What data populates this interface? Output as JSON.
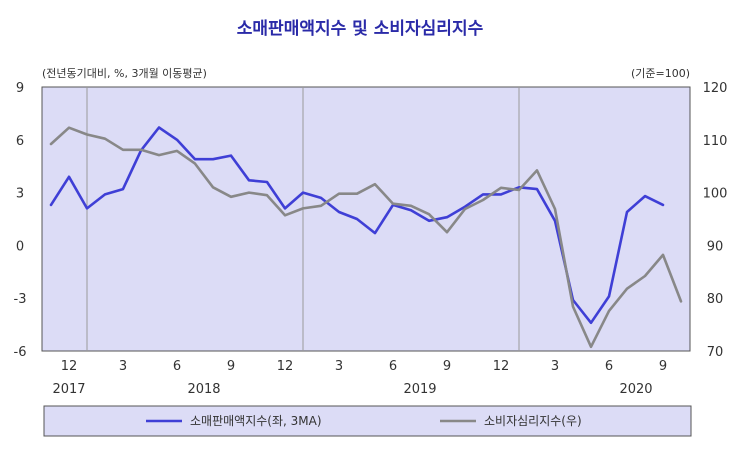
{
  "chart_data": {
    "type": "line",
    "title": "소매판매액지수 및 소비자심리지수",
    "left_note": "(전년동기대비,  %, 3개월 이동평균)",
    "right_note": "(기준=100)",
    "x_tick_labels": [
      "12",
      "3",
      "6",
      "9",
      "12",
      "3",
      "6",
      "9",
      "12",
      "3",
      "6",
      "9"
    ],
    "year_labels": [
      "2017",
      "2018",
      "2019",
      "2020"
    ],
    "y_left": {
      "ticks": [
        9,
        6,
        3,
        0,
        -3,
        -6
      ],
      "range": [
        -6,
        9
      ]
    },
    "y_right": {
      "ticks": [
        120,
        110,
        100,
        90,
        80,
        70
      ],
      "range": [
        70,
        120
      ]
    },
    "x": [
      "2017-11",
      "2017-12",
      "2018-01",
      "2018-02",
      "2018-03",
      "2018-04",
      "2018-05",
      "2018-06",
      "2018-07",
      "2018-08",
      "2018-09",
      "2018-10",
      "2018-11",
      "2018-12",
      "2019-01",
      "2019-02",
      "2019-03",
      "2019-04",
      "2019-05",
      "2019-06",
      "2019-07",
      "2019-08",
      "2019-09",
      "2019-10",
      "2019-11",
      "2019-12",
      "2020-01",
      "2020-02",
      "2020-03",
      "2020-04",
      "2020-05",
      "2020-06",
      "2020-07",
      "2020-08",
      "2020-09"
    ],
    "series": [
      {
        "name": "소매판매액지수(좌,   3MA)",
        "axis": "left",
        "color": "#3f3fd6",
        "x": [
          "2017-10",
          "2017-11",
          "2017-12",
          "2018-01",
          "2018-02",
          "2018-03",
          "2018-04",
          "2018-05",
          "2018-06",
          "2018-07",
          "2018-08",
          "2018-09",
          "2018-10",
          "2018-11",
          "2018-12",
          "2019-01",
          "2019-02",
          "2019-03",
          "2019-04",
          "2019-05",
          "2019-06",
          "2019-07",
          "2019-08",
          "2019-09",
          "2019-10",
          "2019-11",
          "2019-12",
          "2020-01",
          "2020-02",
          "2020-03",
          "2020-04",
          "2020-05",
          "2020-06",
          "2020-07",
          "2020-08"
        ],
        "values": [
          2.3,
          3.9,
          2.1,
          2.9,
          3.2,
          5.4,
          6.7,
          6.0,
          4.9,
          4.9,
          5.1,
          3.7,
          3.6,
          2.1,
          3.0,
          2.7,
          1.9,
          1.5,
          0.7,
          2.3,
          2.0,
          1.4,
          1.6,
          2.2,
          2.9,
          2.9,
          3.3,
          3.2,
          1.4,
          -3.1,
          -4.4,
          -2.9,
          1.9,
          2.8,
          2.3
        ]
      },
      {
        "name": "소비자심리지수(우)",
        "axis": "right",
        "color": "#888888",
        "x": [
          "2017-10",
          "2017-11",
          "2017-12",
          "2018-01",
          "2018-02",
          "2018-03",
          "2018-04",
          "2018-05",
          "2018-06",
          "2018-07",
          "2018-08",
          "2018-09",
          "2018-10",
          "2018-11",
          "2018-12",
          "2019-01",
          "2019-02",
          "2019-03",
          "2019-04",
          "2019-05",
          "2019-06",
          "2019-07",
          "2019-08",
          "2019-09",
          "2019-10",
          "2019-11",
          "2019-12",
          "2020-01",
          "2020-02",
          "2020-03",
          "2020-04",
          "2020-05",
          "2020-06",
          "2020-07",
          "2020-08",
          "2020-09"
        ],
        "values": [
          109.2,
          112.3,
          111.0,
          110.2,
          108.1,
          108.1,
          107.1,
          107.9,
          105.5,
          101.0,
          99.2,
          100.0,
          99.5,
          95.7,
          97.0,
          97.5,
          99.8,
          99.8,
          101.6,
          97.9,
          97.5,
          95.9,
          92.5,
          96.9,
          98.6,
          100.9,
          100.5,
          104.2,
          96.9,
          78.4,
          70.8,
          77.6,
          81.8,
          84.2,
          88.2,
          79.4
        ]
      }
    ],
    "plot_background": "#dcdcf6",
    "grid": false,
    "legend_position": "bottom",
    "year_separators": [
      "2017-12",
      "2018-12",
      "2019-12"
    ]
  }
}
